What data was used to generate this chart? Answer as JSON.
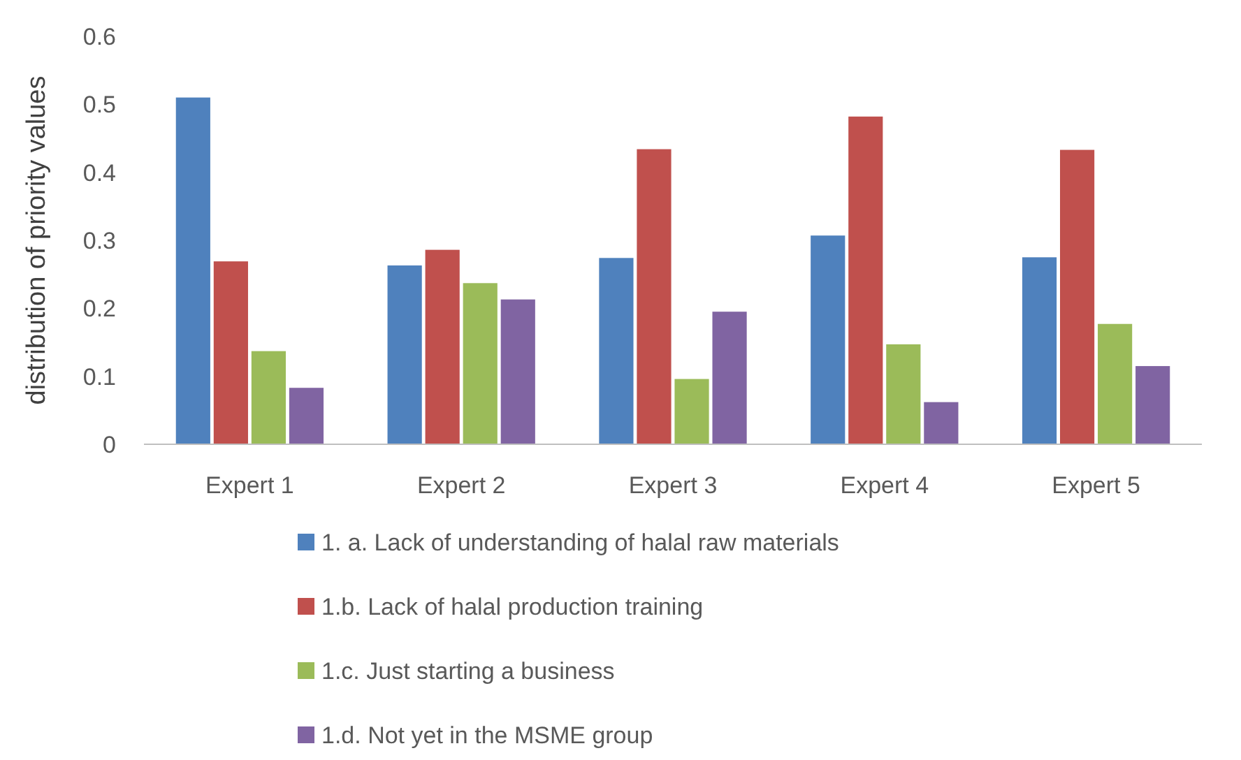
{
  "chart_data": {
    "type": "bar",
    "ylabel": "distribution of priority values",
    "categories": [
      "Expert 1",
      "Expert 2",
      "Expert 3",
      "Expert 4",
      "Expert 5"
    ],
    "series": [
      {
        "name": "1. a. Lack of understanding of halal raw materials",
        "color": "#4f81bd",
        "values": [
          0.51,
          0.263,
          0.274,
          0.307,
          0.275
        ]
      },
      {
        "name": "1.b. Lack of halal production training",
        "color": "#c0504d",
        "values": [
          0.269,
          0.286,
          0.434,
          0.482,
          0.433
        ]
      },
      {
        "name": "1.c. Just starting a business",
        "color": "#9bbb59",
        "values": [
          0.137,
          0.237,
          0.096,
          0.147,
          0.177
        ]
      },
      {
        "name": "1.d. Not yet in the MSME group",
        "color": "#8064a2",
        "values": [
          0.083,
          0.213,
          0.195,
          0.062,
          0.115
        ]
      }
    ],
    "ylim": [
      0,
      0.6
    ],
    "yticks": [
      0,
      0.1,
      0.2,
      0.3,
      0.4,
      0.5,
      0.6
    ],
    "legend": "bottom"
  }
}
